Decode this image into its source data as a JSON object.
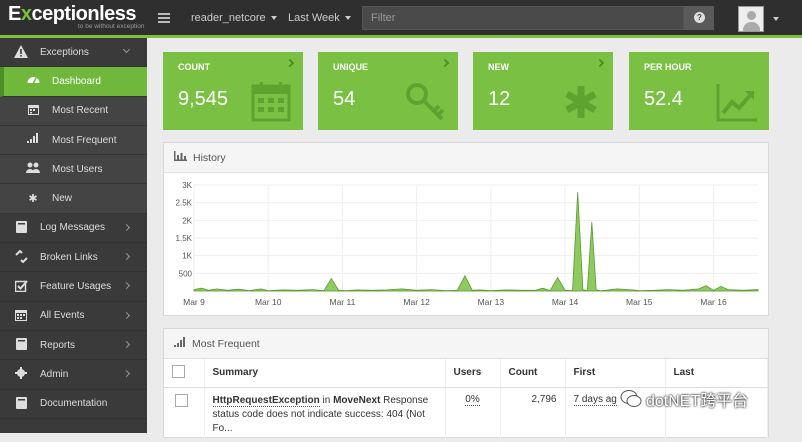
{
  "brand": {
    "name_prefix": "E",
    "name_x": "x",
    "name_rest": "ceptionless",
    "tagline": "to be without exception"
  },
  "header": {
    "project": "reader_netcore",
    "range": "Last Week",
    "filter_placeholder": "Filter",
    "help_glyph": "?"
  },
  "sidebar": {
    "items": [
      {
        "label": "Exceptions",
        "icon": "warning-icon"
      },
      {
        "label": "Dashboard",
        "icon": "dashboard-icon"
      },
      {
        "label": "Most Recent",
        "icon": "calendar-icon"
      },
      {
        "label": "Most Frequent",
        "icon": "signal-icon"
      },
      {
        "label": "Most Users",
        "icon": "users-icon"
      },
      {
        "label": "New",
        "icon": "asterisk-icon"
      },
      {
        "label": "Log Messages",
        "icon": "book-icon"
      },
      {
        "label": "Broken Links",
        "icon": "broken-link-icon"
      },
      {
        "label": "Feature Usages",
        "icon": "checkbox-icon"
      },
      {
        "label": "All Events",
        "icon": "calendar-icon"
      },
      {
        "label": "Reports",
        "icon": "book-icon"
      },
      {
        "label": "Admin",
        "icon": "gear-icon"
      },
      {
        "label": "Documentation",
        "icon": "book-icon"
      }
    ]
  },
  "stats": [
    {
      "label": "COUNT",
      "value": "9,545",
      "icon": "calendar-icon"
    },
    {
      "label": "UNIQUE",
      "value": "54",
      "icon": "key-icon"
    },
    {
      "label": "NEW",
      "value": "12",
      "icon": "asterisk-icon"
    },
    {
      "label": "PER HOUR",
      "value": "52.4",
      "icon": "trend-icon"
    }
  ],
  "history": {
    "title": "History"
  },
  "chart_data": {
    "type": "area",
    "title": "History",
    "xlabel": "",
    "ylabel": "",
    "x_ticks": [
      "Mar 9",
      "Mar 10",
      "Mar 11",
      "Mar 12",
      "Mar 13",
      "Mar 14",
      "Mar 15",
      "Mar 16"
    ],
    "y_ticks": [
      "500",
      "1K",
      "1.5K",
      "2K",
      "2.5K",
      "3K"
    ],
    "ylim": [
      0,
      3000
    ],
    "grid": true,
    "color": "#7ac143",
    "x": [
      9.0,
      9.1,
      9.2,
      9.3,
      9.45,
      9.6,
      9.75,
      9.9,
      10.0,
      10.2,
      10.4,
      10.6,
      10.75,
      10.85,
      10.95,
      11.05,
      11.2,
      11.4,
      11.6,
      11.8,
      12.0,
      12.2,
      12.4,
      12.55,
      12.65,
      12.75,
      12.85,
      13.0,
      13.2,
      13.4,
      13.6,
      13.7,
      13.8,
      13.9,
      14.0,
      14.1,
      14.17,
      14.24,
      14.3,
      14.36,
      14.42,
      14.48,
      14.55,
      14.7,
      14.9,
      15.0,
      15.2,
      15.4,
      15.6,
      15.8,
      15.9,
      16.0,
      16.1,
      16.2,
      16.4,
      16.6
    ],
    "values": [
      40,
      80,
      20,
      60,
      20,
      50,
      10,
      60,
      10,
      30,
      20,
      40,
      10,
      350,
      20,
      10,
      30,
      20,
      30,
      60,
      20,
      40,
      10,
      20,
      430,
      20,
      30,
      10,
      30,
      20,
      20,
      80,
      10,
      380,
      20,
      10,
      2800,
      40,
      10,
      1950,
      30,
      10,
      20,
      60,
      30,
      10,
      20,
      40,
      20,
      60,
      150,
      20,
      130,
      40,
      20,
      40
    ]
  },
  "frequent": {
    "title": "Most Frequent",
    "columns": {
      "summary": "Summary",
      "users": "Users",
      "count": "Count",
      "first": "First",
      "last": "Last"
    },
    "rows": [
      {
        "type": "HttpRequestException",
        "in": "in",
        "method": "MoveNext",
        "message": "Response status code does not indicate success: 404 (Not Fo...",
        "users": "0%",
        "count": "2,796",
        "first": "7 days ag"
      }
    ]
  },
  "watermark": "dotNET跨平台"
}
